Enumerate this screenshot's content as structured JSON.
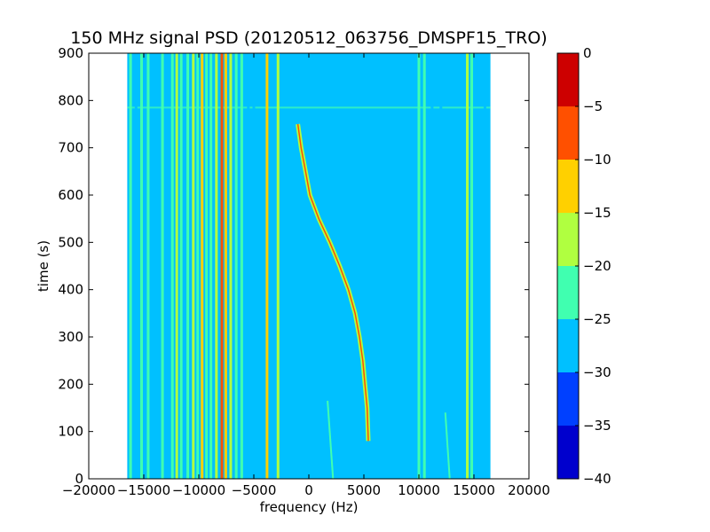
{
  "chart_data": {
    "type": "heatmap",
    "title": "150 MHz signal PSD (20120512_063756_DMSPF15_TRO)",
    "xlabel": "frequency (Hz)",
    "ylabel": "time (s)",
    "xlim": [
      -20000,
      20000
    ],
    "ylim": [
      0,
      900
    ],
    "xticks": [
      -20000,
      -15000,
      -10000,
      -5000,
      0,
      5000,
      10000,
      15000,
      20000
    ],
    "xtick_labels": [
      "−20000",
      "−15000",
      "−10000",
      "−5000",
      "0",
      "5000",
      "10000",
      "15000",
      "20000"
    ],
    "yticks": [
      0,
      100,
      200,
      300,
      400,
      500,
      600,
      700,
      800,
      900
    ],
    "ytick_labels": [
      "0",
      "100",
      "200",
      "300",
      "400",
      "500",
      "600",
      "700",
      "800",
      "900"
    ],
    "data_extent_hz": [
      -16500,
      16500
    ],
    "background_level_db": -30,
    "colorbar": {
      "levels": [
        -40,
        -35,
        -30,
        -25,
        -20,
        -15,
        -10,
        -5,
        0
      ],
      "tick_labels": [
        "−40",
        "−35",
        "−30",
        "−25",
        "−20",
        "−15",
        "−10",
        "−5",
        "0"
      ],
      "colors": [
        "#0000cd",
        "#0040ff",
        "#00c0ff",
        "#40ffb0",
        "#b0ff40",
        "#ffd000",
        "#ff5000",
        "#cd0000"
      ]
    },
    "stationary_lines": [
      {
        "freq_hz": -16200,
        "level_db": -22
      },
      {
        "freq_hz": -15700,
        "level_db": -27
      },
      {
        "freq_hz": -15200,
        "level_db": -22
      },
      {
        "freq_hz": -14600,
        "level_db": -22
      },
      {
        "freq_hz": -13300,
        "level_db": -22
      },
      {
        "freq_hz": -12400,
        "level_db": -22
      },
      {
        "freq_hz": -12000,
        "level_db": -17
      },
      {
        "freq_hz": -11600,
        "level_db": -22
      },
      {
        "freq_hz": -11000,
        "level_db": -22
      },
      {
        "freq_hz": -10500,
        "level_db": -17
      },
      {
        "freq_hz": -10100,
        "level_db": -22
      },
      {
        "freq_hz": -9700,
        "level_db": -12
      },
      {
        "freq_hz": -9300,
        "level_db": -22
      },
      {
        "freq_hz": -8900,
        "level_db": -22
      },
      {
        "freq_hz": -8400,
        "level_db": -17
      },
      {
        "freq_hz": -7900,
        "level_db": -7
      },
      {
        "freq_hz": -7550,
        "level_db": -12
      },
      {
        "freq_hz": -7100,
        "level_db": -17
      },
      {
        "freq_hz": -6600,
        "level_db": -22
      },
      {
        "freq_hz": -6100,
        "level_db": -22
      },
      {
        "freq_hz": -5500,
        "level_db": -27
      },
      {
        "freq_hz": -5000,
        "level_db": -27
      },
      {
        "freq_hz": -3800,
        "level_db": -12
      },
      {
        "freq_hz": -2800,
        "level_db": -17
      },
      {
        "freq_hz": 10000,
        "level_db": -22
      },
      {
        "freq_hz": 10500,
        "level_db": -22
      },
      {
        "freq_hz": 11200,
        "level_db": -27
      },
      {
        "freq_hz": 12000,
        "level_db": -27
      },
      {
        "freq_hz": 14400,
        "level_db": -17
      },
      {
        "freq_hz": 14800,
        "level_db": -22
      },
      {
        "freq_hz": 16000,
        "level_db": -27
      }
    ],
    "doppler_track": {
      "level_db": -17,
      "points": [
        {
          "time_s": 80,
          "freq_hz": 5400
        },
        {
          "time_s": 150,
          "freq_hz": 5300
        },
        {
          "time_s": 200,
          "freq_hz": 5100
        },
        {
          "time_s": 250,
          "freq_hz": 4900
        },
        {
          "time_s": 300,
          "freq_hz": 4600
        },
        {
          "time_s": 350,
          "freq_hz": 4200
        },
        {
          "time_s": 400,
          "freq_hz": 3600
        },
        {
          "time_s": 450,
          "freq_hz": 2800
        },
        {
          "time_s": 500,
          "freq_hz": 1900
        },
        {
          "time_s": 550,
          "freq_hz": 900
        },
        {
          "time_s": 600,
          "freq_hz": 100
        },
        {
          "time_s": 650,
          "freq_hz": -300
        },
        {
          "time_s": 700,
          "freq_hz": -700
        },
        {
          "time_s": 750,
          "freq_hz": -1000
        }
      ]
    },
    "faint_segments": [
      {
        "freq_start_hz": 2200,
        "time_start_s": 0,
        "freq_end_hz": 1700,
        "time_end_s": 165,
        "level_db": -22
      },
      {
        "freq_start_hz": 12800,
        "time_start_s": 0,
        "freq_end_hz": 12400,
        "time_end_s": 140,
        "level_db": -22
      }
    ],
    "horizontal_band": {
      "time_s": 785,
      "level_db": -22
    }
  }
}
